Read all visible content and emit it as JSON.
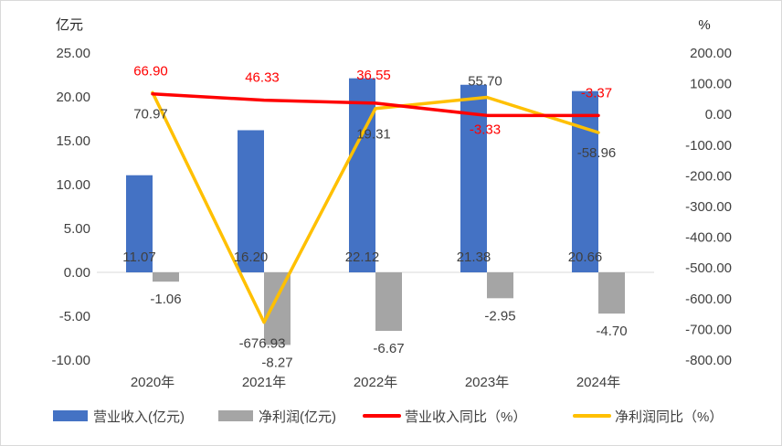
{
  "chart_data": {
    "type": "bar",
    "categories": [
      "2020年",
      "2021年",
      "2022年",
      "2023年",
      "2024年"
    ],
    "y_left": {
      "label": "亿元",
      "range": [
        -10,
        25
      ],
      "ticks": [
        "-10.00",
        "-5.00",
        "0.00",
        "5.00",
        "10.00",
        "15.00",
        "20.00",
        "25.00"
      ]
    },
    "y_right": {
      "label": "%",
      "range": [
        -800,
        200
      ],
      "ticks": [
        "-800.00",
        "-700.00",
        "-600.00",
        "-500.00",
        "-400.00",
        "-300.00",
        "-200.00",
        "-100.00",
        "0.00",
        "100.00",
        "200.00"
      ]
    },
    "series": [
      {
        "name": "营业收入(亿元)",
        "type": "bar",
        "axis": "left",
        "color": "#4472c4",
        "values": [
          11.07,
          16.2,
          22.12,
          21.38,
          20.66
        ],
        "labels": [
          "11.07",
          "16.20",
          "22.12",
          "21.38",
          "20.66"
        ]
      },
      {
        "name": "净利润(亿元)",
        "type": "bar",
        "axis": "left",
        "color": "#a5a5a5",
        "values": [
          -1.06,
          -8.27,
          -6.67,
          -2.95,
          -4.7
        ],
        "labels": [
          "-1.06",
          "-8.27",
          "-6.67",
          "-2.95",
          "-4.70"
        ]
      },
      {
        "name": "营业收入同比（%）",
        "type": "line",
        "axis": "right",
        "color": "#ff0000",
        "label_color": "#ff0000",
        "values": [
          66.9,
          46.33,
          36.55,
          -3.33,
          -3.37
        ],
        "labels": [
          "66.90",
          "46.33",
          "36.55",
          "-3.33",
          "-3.37"
        ]
      },
      {
        "name": "净利润同比（%）",
        "type": "line",
        "axis": "right",
        "color": "#ffc000",
        "label_color": "#404040",
        "values": [
          70.97,
          -676.93,
          19.31,
          55.7,
          -58.96
        ],
        "labels": [
          "70.97",
          "-676.93",
          "19.31",
          "55.70",
          "-58.96"
        ]
      }
    ],
    "grid": false,
    "legend": "bottom"
  }
}
